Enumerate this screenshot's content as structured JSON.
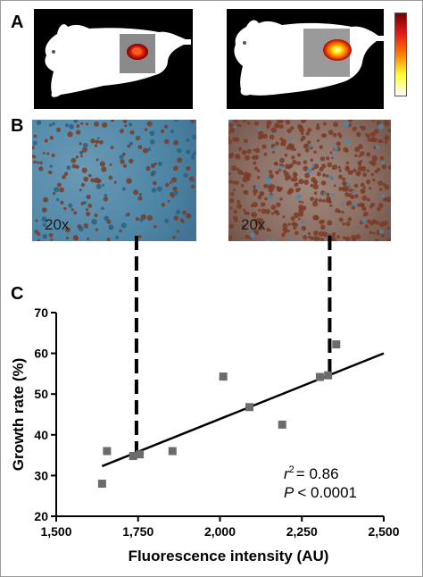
{
  "panels": {
    "a": "A",
    "b": "B",
    "c": "C"
  },
  "micrographs": [
    {
      "magnification": "20x"
    },
    {
      "magnification": "20x"
    }
  ],
  "colors": {
    "points": "#6b6b6b",
    "line": "#000000",
    "signal_low": "#d81818",
    "signal_high": "#ffffff",
    "stain_blue": "#4f86a6",
    "stain_brown": "#7a3b26"
  },
  "chart_data": {
    "type": "scatter",
    "xlabel": "Fluorescence intensity (AU)",
    "ylabel": "Growth rate (%)",
    "xlim": [
      1500,
      2500
    ],
    "ylim": [
      20,
      70
    ],
    "x_ticks": [
      "1,500",
      "1,750",
      "2,000",
      "2,250",
      "2,500"
    ],
    "y_ticks": [
      "20",
      "30",
      "40",
      "50",
      "60",
      "70"
    ],
    "x_tick_values": [
      1500,
      1750,
      2000,
      2250,
      2500
    ],
    "y_tick_values": [
      20,
      30,
      40,
      50,
      60,
      70
    ],
    "points": [
      {
        "x": 1640,
        "y": 28
      },
      {
        "x": 1655,
        "y": 36
      },
      {
        "x": 1735,
        "y": 34.8
      },
      {
        "x": 1755,
        "y": 35.2
      },
      {
        "x": 1855,
        "y": 36
      },
      {
        "x": 2010,
        "y": 54.3
      },
      {
        "x": 2090,
        "y": 46.8
      },
      {
        "x": 2190,
        "y": 42.5
      },
      {
        "x": 2305,
        "y": 54.2
      },
      {
        "x": 2330,
        "y": 54.6
      },
      {
        "x": 2355,
        "y": 62.2
      }
    ],
    "fit_line": {
      "x": [
        1640,
        2500
      ],
      "y": [
        32.3,
        60
      ]
    },
    "dashed_links": [
      {
        "x": 1745,
        "y": 35
      },
      {
        "x": 2335,
        "y": 54.5
      }
    ],
    "grid": false,
    "annotation": {
      "r2": "= 0.86",
      "p": "< 0.0001"
    }
  }
}
